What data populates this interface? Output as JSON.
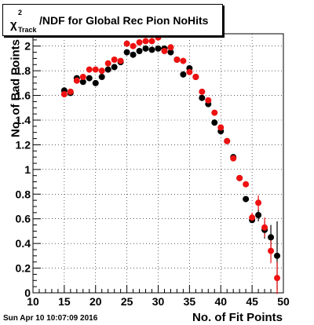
{
  "chart_data": {
    "type": "scatter",
    "title": {
      "chi": "χ",
      "sup": "2",
      "sub": "Track",
      "rest": "/NDF for Global Rec Pion NoHits"
    },
    "xlabel": "No. of Fit Points",
    "ylabel": "No. of Bad Points",
    "xlim": [
      10,
      50
    ],
    "ylim": [
      0,
      2.1
    ],
    "xticks": [
      "10",
      "15",
      "20",
      "25",
      "30",
      "35",
      "40",
      "45",
      "50"
    ],
    "yticks": [
      "0",
      "0.2",
      "0.4",
      "0.6",
      "0.8",
      "1",
      "1.2",
      "1.4",
      "1.6",
      "1.8",
      "2"
    ],
    "grid": true,
    "series": [
      {
        "color": "#000000",
        "points": [
          {
            "x": 15,
            "y": 1.64
          },
          {
            "x": 16,
            "y": 1.62
          },
          {
            "x": 17,
            "y": 1.74
          },
          {
            "x": 18,
            "y": 1.71
          },
          {
            "x": 19,
            "y": 1.74
          },
          {
            "x": 20,
            "y": 1.7
          },
          {
            "x": 21,
            "y": 1.75
          },
          {
            "x": 22,
            "y": 1.81
          },
          {
            "x": 23,
            "y": 1.83
          },
          {
            "x": 24,
            "y": 1.87
          },
          {
            "x": 25,
            "y": 1.95
          },
          {
            "x": 26,
            "y": 1.93
          },
          {
            "x": 27,
            "y": 1.96
          },
          {
            "x": 28,
            "y": 1.98
          },
          {
            "x": 29,
            "y": 1.97
          },
          {
            "x": 30,
            "y": 1.98
          },
          {
            "x": 31,
            "y": 1.98
          },
          {
            "x": 32,
            "y": 1.95
          },
          {
            "x": 33,
            "y": 1.89
          },
          {
            "x": 34,
            "y": 1.77
          },
          {
            "x": 35,
            "y": 1.82
          },
          {
            "x": 36,
            "y": 1.75
          },
          {
            "x": 37,
            "y": 1.58
          },
          {
            "x": 38,
            "y": 1.53
          },
          {
            "x": 39,
            "y": 1.38
          },
          {
            "x": 40,
            "y": 1.31
          },
          {
            "x": 41,
            "y": 1.23
          },
          {
            "x": 42,
            "y": 1.1
          },
          {
            "x": 43,
            "y": 0.93
          },
          {
            "x": 44,
            "y": 0.76
          },
          {
            "x": 45,
            "y": 0.59
          },
          {
            "x": 46,
            "y": 0.63
          },
          {
            "x": 47,
            "y": 0.51
          },
          {
            "x": 48,
            "y": 0.45
          },
          {
            "x": 49,
            "y": 0.3
          }
        ],
        "errors": [
          {
            "x": 46,
            "err": 0.05
          },
          {
            "x": 47,
            "err": 0.07
          },
          {
            "x": 48,
            "err": 0.1
          },
          {
            "x": 49,
            "err": 0.28
          }
        ]
      },
      {
        "color": "#ee1111",
        "points": [
          {
            "x": 15,
            "y": 1.61
          },
          {
            "x": 16,
            "y": 1.63
          },
          {
            "x": 17,
            "y": 1.72
          },
          {
            "x": 18,
            "y": 1.75
          },
          {
            "x": 19,
            "y": 1.81
          },
          {
            "x": 20,
            "y": 1.81
          },
          {
            "x": 21,
            "y": 1.8
          },
          {
            "x": 22,
            "y": 1.86
          },
          {
            "x": 23,
            "y": 1.89
          },
          {
            "x": 24,
            "y": 1.88
          },
          {
            "x": 25,
            "y": 2.02
          },
          {
            "x": 26,
            "y": 2.0
          },
          {
            "x": 27,
            "y": 2.03
          },
          {
            "x": 28,
            "y": 2.04
          },
          {
            "x": 29,
            "y": 2.04
          },
          {
            "x": 30,
            "y": 2.07
          },
          {
            "x": 31,
            "y": 1.96
          },
          {
            "x": 32,
            "y": 1.99
          },
          {
            "x": 33,
            "y": 1.89
          },
          {
            "x": 34,
            "y": 1.88
          },
          {
            "x": 35,
            "y": 1.79
          },
          {
            "x": 36,
            "y": 1.75
          },
          {
            "x": 37,
            "y": 1.63
          },
          {
            "x": 38,
            "y": 1.56
          },
          {
            "x": 39,
            "y": 1.46
          },
          {
            "x": 40,
            "y": 1.34
          },
          {
            "x": 41,
            "y": 1.23
          },
          {
            "x": 42,
            "y": 1.09
          },
          {
            "x": 43,
            "y": 0.93
          },
          {
            "x": 44,
            "y": 0.88
          },
          {
            "x": 45,
            "y": 0.61
          },
          {
            "x": 46,
            "y": 0.73
          },
          {
            "x": 47,
            "y": 0.53
          },
          {
            "x": 48,
            "y": 0.34
          },
          {
            "x": 49,
            "y": 0.12
          }
        ],
        "errors": [
          {
            "x": 45,
            "err": 0.04
          },
          {
            "x": 46,
            "err": 0.06
          },
          {
            "x": 47,
            "err": 0.08
          },
          {
            "x": 48,
            "err": 0.1
          },
          {
            "x": 49,
            "err": 0.13
          }
        ]
      }
    ]
  },
  "datestamp": "Sun Apr 10 10:07:09 2016"
}
